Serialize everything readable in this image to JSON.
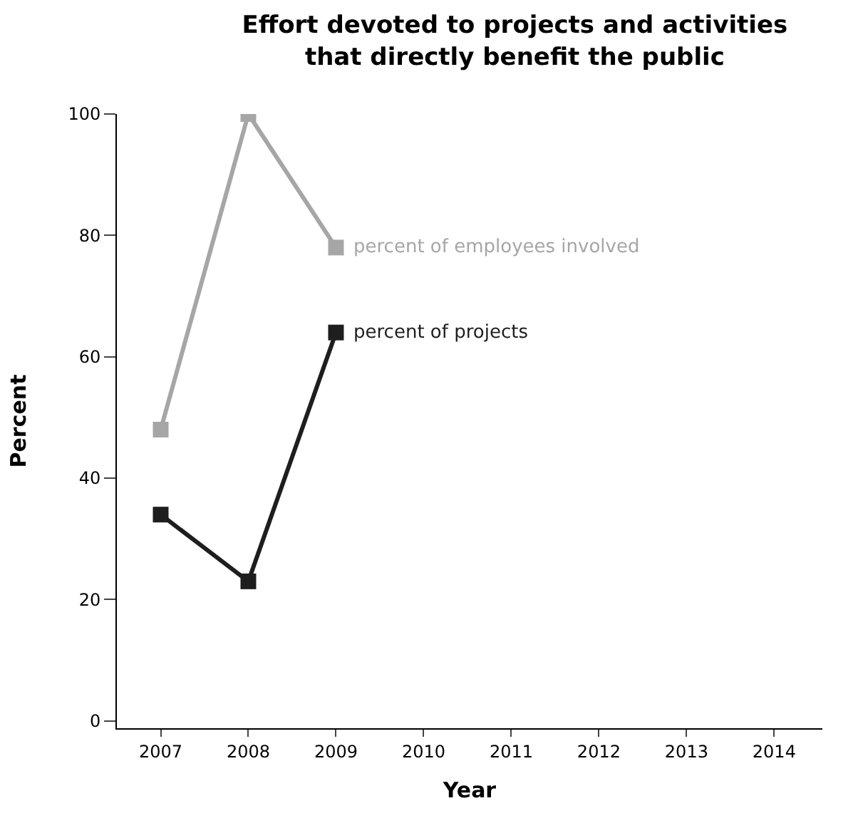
{
  "chart_data": {
    "type": "line",
    "title": "Effort devoted to projects and activities\nthat directly benefit the public",
    "xlabel": "Year",
    "ylabel": "Percent",
    "x": [
      2007,
      2008,
      2009
    ],
    "series": [
      {
        "name": "percent of employees involved",
        "color": "#a6a6a6",
        "values": [
          48,
          100,
          78
        ]
      },
      {
        "name": "percent of projects",
        "color": "#1e1e1e",
        "values": [
          34,
          23,
          64
        ]
      }
    ],
    "xlim": [
      2006.5,
      2014.55
    ],
    "xticks": [
      2007,
      2008,
      2009,
      2010,
      2011,
      2012,
      2013,
      2014
    ],
    "ylim": [
      -1.2,
      100
    ],
    "yticks": [
      0,
      20,
      40,
      60,
      80,
      100
    ],
    "legend": false,
    "marker": "square",
    "line_style": "solid"
  }
}
